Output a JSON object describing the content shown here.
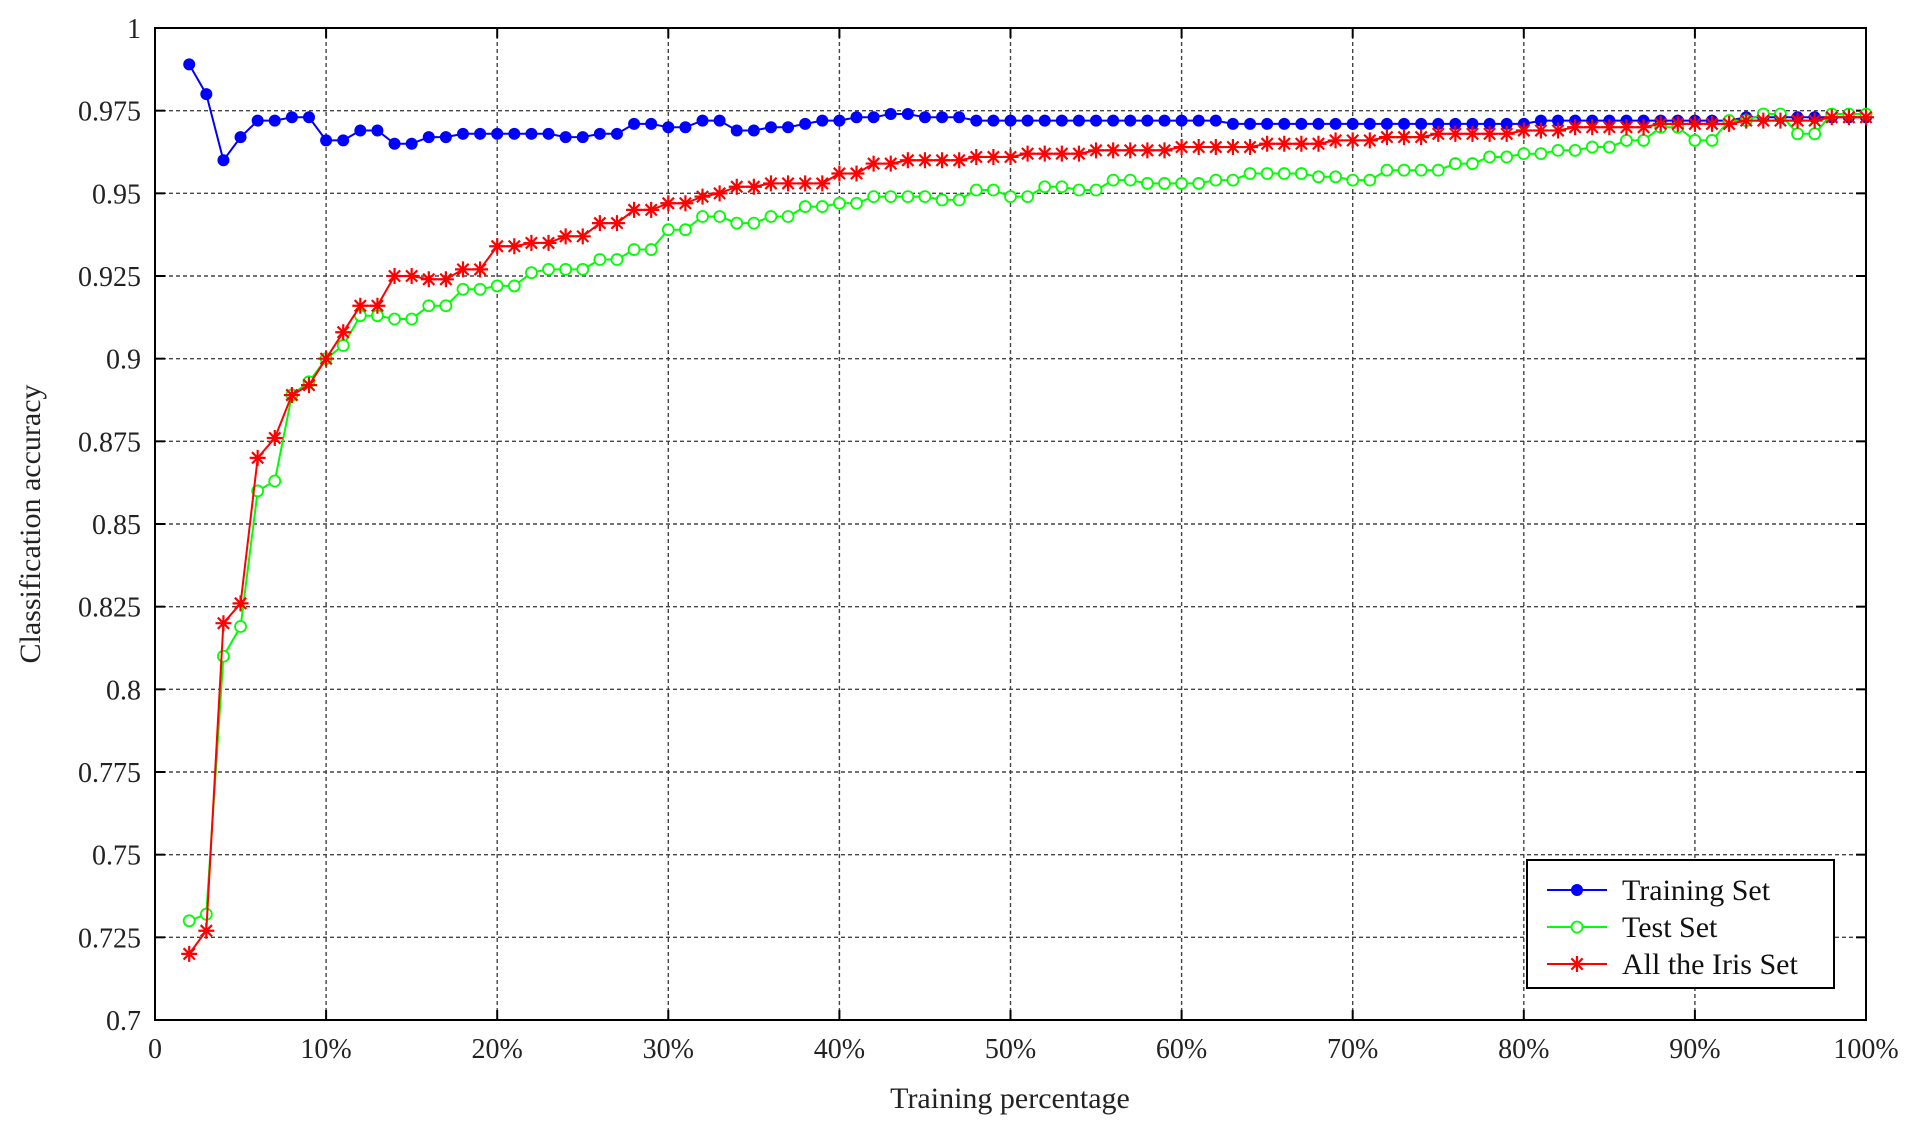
{
  "chart_data": {
    "type": "line",
    "title": "",
    "xlabel": "Training percentage",
    "ylabel": "Classification accuracy",
    "xlim": [
      0,
      100
    ],
    "ylim": [
      0.7,
      1.0
    ],
    "grid": true,
    "legend_position": "bottom-right",
    "x_ticks": [
      0,
      10,
      20,
      30,
      40,
      50,
      60,
      70,
      80,
      90,
      100
    ],
    "x_tick_labels": [
      "0",
      "10%",
      "20%",
      "30%",
      "40%",
      "50%",
      "60%",
      "70%",
      "80%",
      "90%",
      "100%"
    ],
    "y_ticks": [
      0.7,
      0.725,
      0.75,
      0.775,
      0.8,
      0.825,
      0.85,
      0.875,
      0.9,
      0.925,
      0.95,
      0.975,
      1.0
    ],
    "y_tick_labels": [
      "0.7",
      "0.725",
      "0.75",
      "0.775",
      "0.8",
      "0.825",
      "0.85",
      "0.875",
      "0.9",
      "0.925",
      "0.95",
      "0.975",
      "1"
    ],
    "x": [
      2,
      3,
      4,
      5,
      6,
      7,
      8,
      9,
      10,
      11,
      12,
      13,
      14,
      15,
      16,
      17,
      18,
      19,
      20,
      21,
      22,
      23,
      24,
      25,
      26,
      27,
      28,
      29,
      30,
      31,
      32,
      33,
      34,
      35,
      36,
      37,
      38,
      39,
      40,
      41,
      42,
      43,
      44,
      45,
      46,
      47,
      48,
      49,
      50,
      51,
      52,
      53,
      54,
      55,
      56,
      57,
      58,
      59,
      60,
      61,
      62,
      63,
      64,
      65,
      66,
      67,
      68,
      69,
      70,
      71,
      72,
      73,
      74,
      75,
      76,
      77,
      78,
      79,
      80,
      81,
      82,
      83,
      84,
      85,
      86,
      87,
      88,
      89,
      90,
      91,
      92,
      93,
      94,
      95,
      96,
      97,
      98,
      99,
      100
    ],
    "series": [
      {
        "name": "Training Set",
        "color": "#0000ff",
        "marker": "filled-circle",
        "values": [
          0.989,
          0.98,
          0.96,
          0.967,
          0.972,
          0.972,
          0.973,
          0.973,
          0.966,
          0.966,
          0.969,
          0.969,
          0.965,
          0.965,
          0.967,
          0.967,
          0.968,
          0.968,
          0.968,
          0.968,
          0.968,
          0.968,
          0.967,
          0.967,
          0.968,
          0.968,
          0.971,
          0.971,
          0.97,
          0.97,
          0.972,
          0.972,
          0.969,
          0.969,
          0.97,
          0.97,
          0.971,
          0.972,
          0.972,
          0.973,
          0.973,
          0.974,
          0.974,
          0.973,
          0.973,
          0.973,
          0.972,
          0.972,
          0.972,
          0.972,
          0.972,
          0.972,
          0.972,
          0.972,
          0.972,
          0.972,
          0.972,
          0.972,
          0.972,
          0.972,
          0.972,
          0.971,
          0.971,
          0.971,
          0.971,
          0.971,
          0.971,
          0.971,
          0.971,
          0.971,
          0.971,
          0.971,
          0.971,
          0.971,
          0.971,
          0.971,
          0.971,
          0.971,
          0.971,
          0.972,
          0.972,
          0.972,
          0.972,
          0.972,
          0.972,
          0.972,
          0.972,
          0.972,
          0.972,
          0.972,
          0.972,
          0.973,
          0.973,
          0.973,
          0.973,
          0.973,
          0.973,
          0.973,
          0.973
        ]
      },
      {
        "name": "Test Set",
        "color": "#00ff00",
        "marker": "open-circle",
        "values": [
          0.73,
          0.732,
          0.81,
          0.819,
          0.86,
          0.863,
          0.889,
          0.893,
          0.9,
          0.904,
          0.913,
          0.913,
          0.912,
          0.912,
          0.916,
          0.916,
          0.921,
          0.921,
          0.922,
          0.922,
          0.926,
          0.927,
          0.927,
          0.927,
          0.93,
          0.93,
          0.933,
          0.933,
          0.939,
          0.939,
          0.943,
          0.943,
          0.941,
          0.941,
          0.943,
          0.943,
          0.946,
          0.946,
          0.947,
          0.947,
          0.949,
          0.949,
          0.949,
          0.949,
          0.948,
          0.948,
          0.951,
          0.951,
          0.949,
          0.949,
          0.952,
          0.952,
          0.951,
          0.951,
          0.954,
          0.954,
          0.953,
          0.953,
          0.953,
          0.953,
          0.954,
          0.954,
          0.956,
          0.956,
          0.956,
          0.956,
          0.955,
          0.955,
          0.954,
          0.954,
          0.957,
          0.957,
          0.957,
          0.957,
          0.959,
          0.959,
          0.961,
          0.961,
          0.962,
          0.962,
          0.963,
          0.963,
          0.964,
          0.964,
          0.966,
          0.966,
          0.97,
          0.97,
          0.966,
          0.966,
          0.972,
          0.972,
          0.974,
          0.974,
          0.968,
          0.968,
          0.974,
          0.974,
          0.974
        ]
      },
      {
        "name": "All the Iris Set",
        "color": "#ff0000",
        "marker": "star",
        "values": [
          0.72,
          0.727,
          0.82,
          0.826,
          0.87,
          0.876,
          0.889,
          0.892,
          0.9,
          0.908,
          0.916,
          0.916,
          0.925,
          0.925,
          0.924,
          0.924,
          0.927,
          0.927,
          0.934,
          0.934,
          0.935,
          0.935,
          0.937,
          0.937,
          0.941,
          0.941,
          0.945,
          0.945,
          0.947,
          0.947,
          0.949,
          0.95,
          0.952,
          0.952,
          0.953,
          0.953,
          0.953,
          0.953,
          0.956,
          0.956,
          0.959,
          0.959,
          0.96,
          0.96,
          0.96,
          0.96,
          0.961,
          0.961,
          0.961,
          0.962,
          0.962,
          0.962,
          0.962,
          0.963,
          0.963,
          0.963,
          0.963,
          0.963,
          0.964,
          0.964,
          0.964,
          0.964,
          0.964,
          0.965,
          0.965,
          0.965,
          0.965,
          0.966,
          0.966,
          0.966,
          0.967,
          0.967,
          0.967,
          0.968,
          0.968,
          0.968,
          0.968,
          0.968,
          0.969,
          0.969,
          0.969,
          0.97,
          0.97,
          0.97,
          0.97,
          0.97,
          0.971,
          0.971,
          0.971,
          0.971,
          0.971,
          0.972,
          0.972,
          0.972,
          0.972,
          0.972,
          0.973,
          0.973,
          0.973
        ]
      }
    ]
  }
}
